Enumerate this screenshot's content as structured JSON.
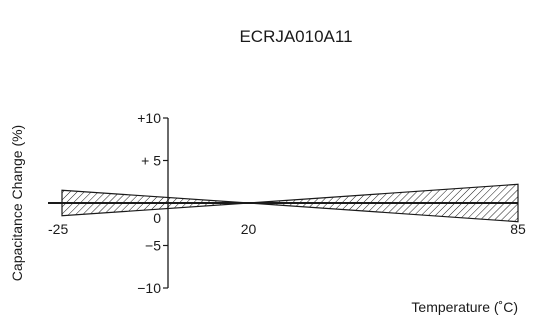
{
  "chart_data": {
    "type": "area",
    "title": "ECRJA010A11",
    "xlabel": "Temperature (˚C)",
    "ylabel": "Capacitance Change (%)",
    "x_ticks": [
      {
        "value": -25,
        "label": "-25"
      },
      {
        "value": 20,
        "label": "20"
      },
      {
        "value": 85,
        "label": "85"
      }
    ],
    "y_ticks": [
      {
        "value": 10,
        "label": "+10"
      },
      {
        "value": 5,
        "label": "+ 5"
      },
      {
        "value": 0,
        "label": "0"
      },
      {
        "value": -5,
        "label": "−5"
      },
      {
        "value": -10,
        "label": "−10"
      }
    ],
    "xlim": [
      -25,
      85
    ],
    "ylim": [
      -10,
      10
    ],
    "grid": false,
    "series": [
      {
        "x": [
          -25,
          20,
          85
        ],
        "upper": [
          1.5,
          0,
          2.2
        ],
        "lower": [
          -1.5,
          0,
          -2.2
        ]
      }
    ],
    "style": {
      "fill": "hatched",
      "stroke_color": "#1a1a1a"
    }
  }
}
